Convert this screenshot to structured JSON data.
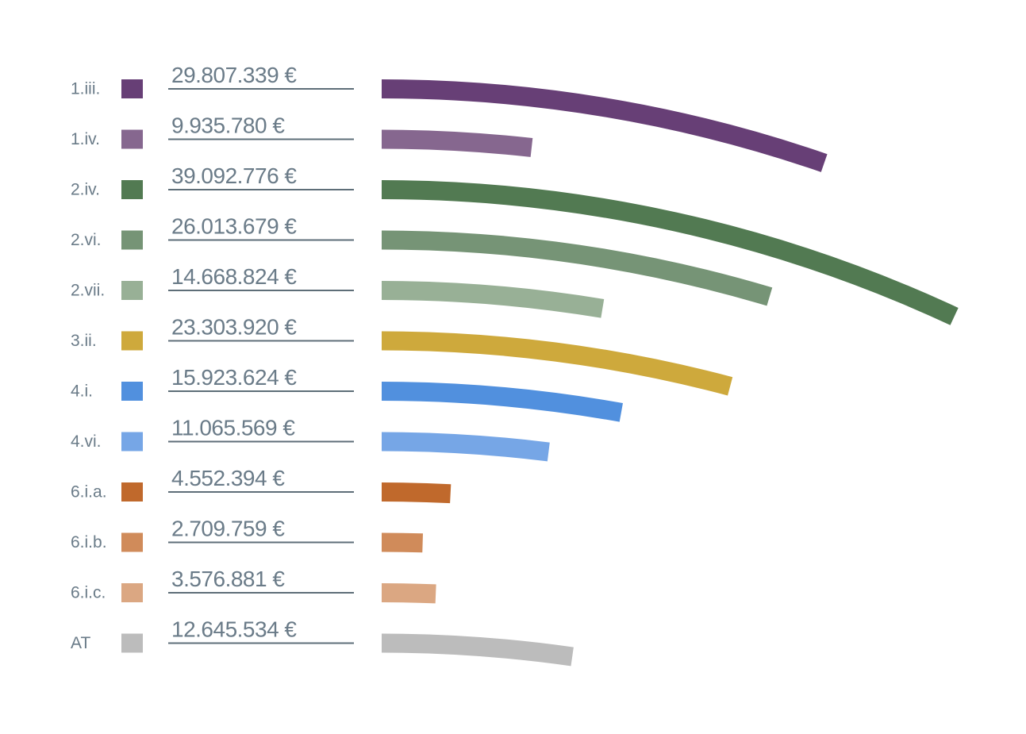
{
  "chart_data": {
    "type": "bar",
    "categories": [
      "1.iii.",
      "1.iv.",
      "2.iv.",
      "2.vi.",
      "2.vii.",
      "3.ii.",
      "4.i.",
      "4.vi.",
      "6.i.a.",
      "6.i.b.",
      "6.i.c.",
      "AT"
    ],
    "values": [
      29807339,
      9935780,
      39092776,
      26013679,
      14668824,
      23303920,
      15923624,
      11065569,
      4552394,
      2709759,
      3576881,
      12645534
    ],
    "value_labels": [
      "29.807.339 €",
      "9.935.780 €",
      "39.092.776 €",
      "26.013.679 €",
      "14.668.824 €",
      "23.303.920 €",
      "15.923.624 €",
      "11.065.569 €",
      "4.552.394 €",
      "2.709.759 €",
      "3.576.881 €",
      "12.645.534 €"
    ],
    "colors": [
      "#673f76",
      "#86678f",
      "#527a52",
      "#769476",
      "#98b096",
      "#cea93c",
      "#5190de",
      "#76a6e6",
      "#c0692c",
      "#d08b5a",
      "#dba782",
      "#bcbcbc"
    ]
  }
}
